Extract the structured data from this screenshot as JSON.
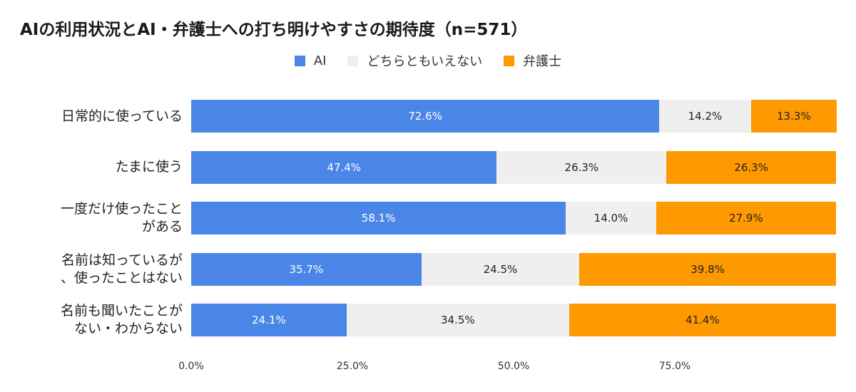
{
  "chart_data": {
    "type": "bar",
    "orientation": "horizontal",
    "stacked": true,
    "title": "AIの利用状況とAI・弁護士への打ち明けやすさの期待度（n=571）",
    "legend_position": "top-center",
    "grid": false,
    "xlim": [
      0,
      100
    ],
    "categories": [
      "日常的に使っている",
      "たまに使う",
      "一度だけ使ったこと\nがある",
      "名前は知っているが\n、使ったことはない",
      "名前も聞いたことが\nない・わからない"
    ],
    "series": [
      {
        "name": "AI",
        "color": "#4a86e8",
        "label_color": "#ffffff",
        "values": [
          72.6,
          47.4,
          58.1,
          35.7,
          24.1
        ],
        "labels": [
          "72.6%",
          "47.4%",
          "58.1%",
          "35.7%",
          "24.1%"
        ]
      },
      {
        "name": "どちらともいえない",
        "color": "#efefef",
        "label_color": "#222222",
        "values": [
          14.2,
          26.3,
          14.0,
          24.5,
          34.5
        ],
        "labels": [
          "14.2%",
          "26.3%",
          "14.0%",
          "24.5%",
          "34.5%"
        ]
      },
      {
        "name": "弁護士",
        "color": "#ff9900",
        "label_color": "#222222",
        "values": [
          13.3,
          26.3,
          27.9,
          39.8,
          41.4
        ],
        "labels": [
          "13.3%",
          "26.3%",
          "27.9%",
          "39.8%",
          "41.4%"
        ]
      }
    ],
    "x_ticks": [
      0,
      25,
      50,
      75
    ],
    "x_tick_labels": [
      "0.0%",
      "25.0%",
      "50.0%",
      "75.0%"
    ]
  }
}
